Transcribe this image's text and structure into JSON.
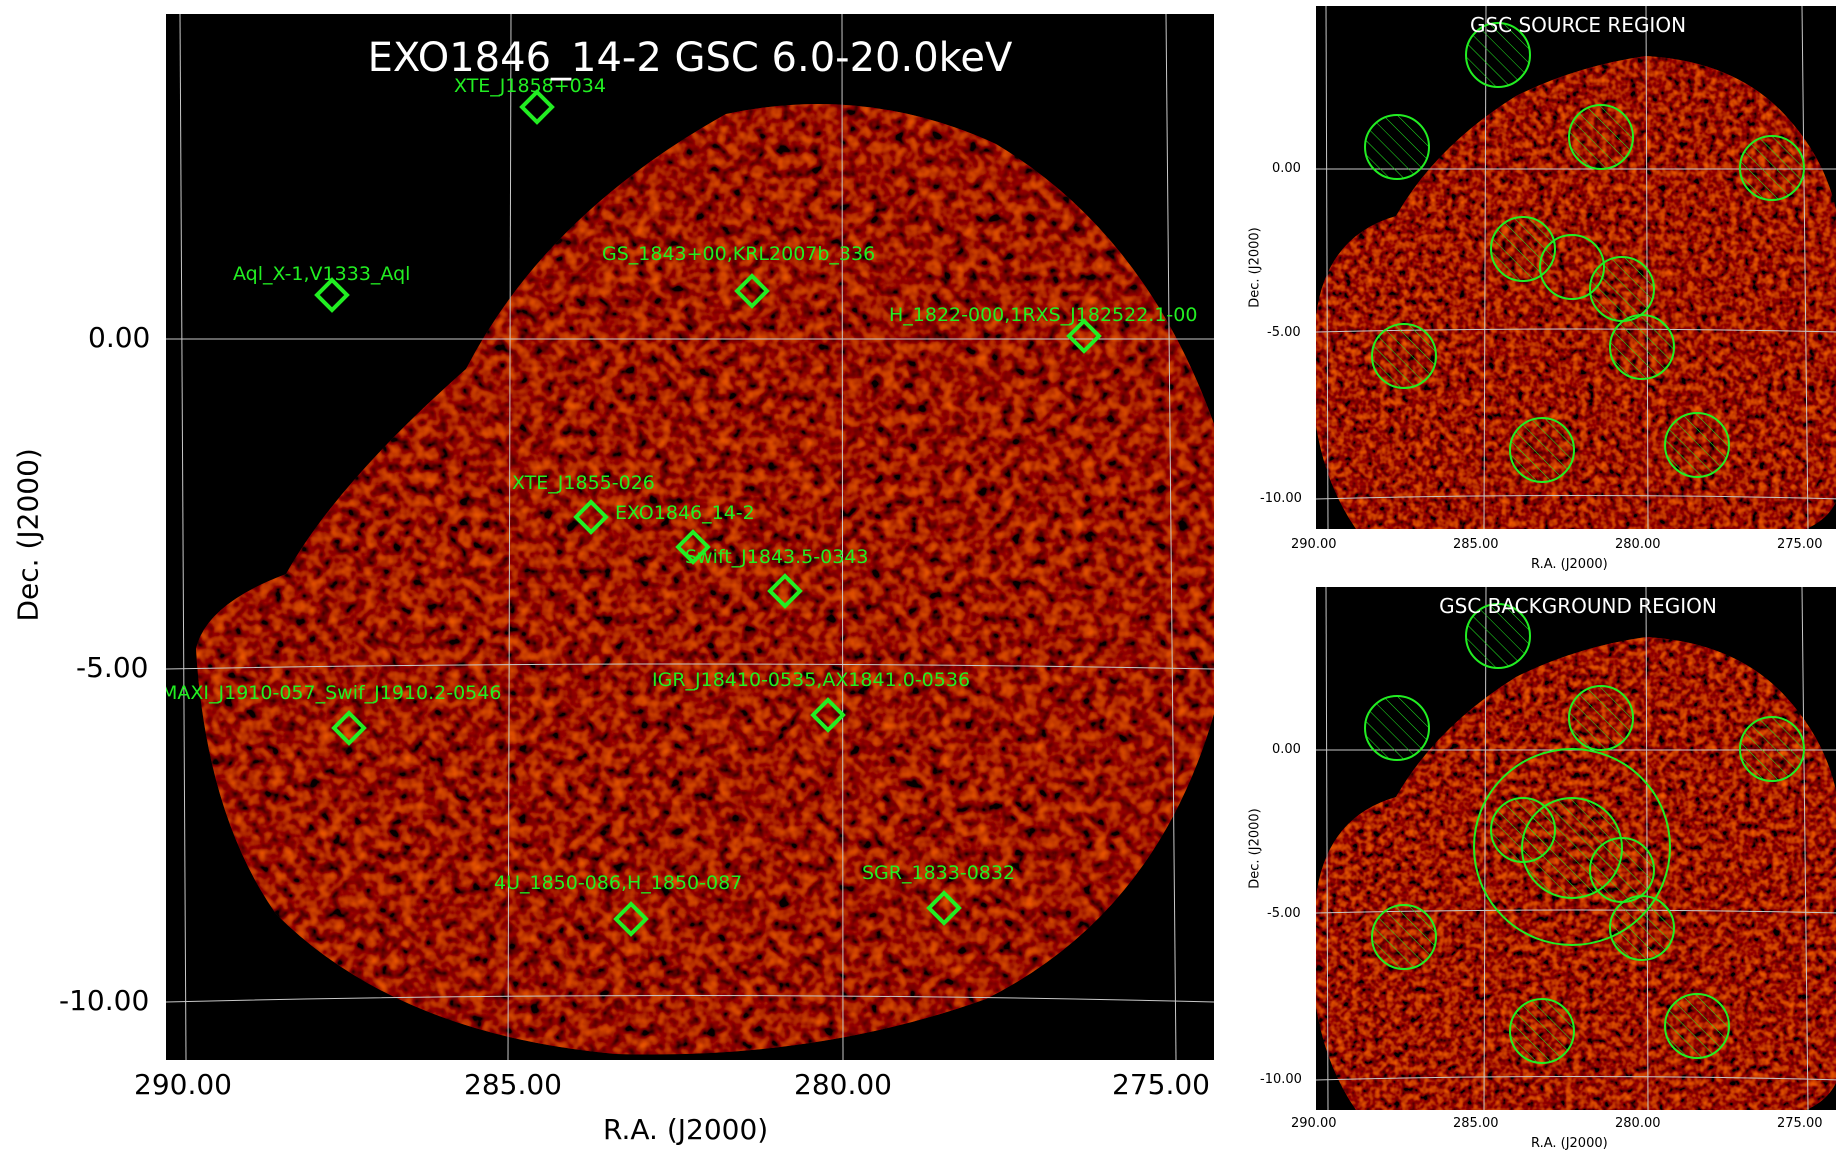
{
  "main": {
    "title": "EXO1846_14-2 GSC 6.0-20.0keV",
    "xlabel": "R.A. (J2000)",
    "ylabel": "Dec. (J2000)",
    "xticks": [
      "290.00",
      "285.00",
      "280.00",
      "275.00"
    ],
    "yticks": [
      "0.00",
      "-5.00",
      "-10.00"
    ],
    "sources": [
      {
        "name": "XTE_J1858+034"
      },
      {
        "name": "Aql_X-1,V1333_Aql"
      },
      {
        "name": "GS_1843+00,KRL2007b_336"
      },
      {
        "name": "H_1822-000,1RXS_J182522.1-00"
      },
      {
        "name": "XTE_J1855-026"
      },
      {
        "name": "EXO1846_14-2"
      },
      {
        "name": "Swift_J1843.5-0343"
      },
      {
        "name": "MAXI_J1910-057_Swif_J1910.2-0546"
      },
      {
        "name": "IGR_J18410-0535,AX1841.0-0536"
      },
      {
        "name": "4U_1850-086,H_1850-087"
      },
      {
        "name": "SGR_1833-0832"
      }
    ]
  },
  "source_panel": {
    "title": "GSC SOURCE REGION",
    "xlabel": "R.A. (J2000)",
    "ylabel": "Dec. (J2000)",
    "xticks": [
      "290.00",
      "285.00",
      "280.00",
      "275.00"
    ],
    "yticks": [
      "0.00",
      "-5.00",
      "-10.00"
    ]
  },
  "background_panel": {
    "title": "GSC BACKGROUND REGION",
    "xlabel": "R.A. (J2000)",
    "ylabel": "Dec. (J2000)",
    "xticks": [
      "290.00",
      "285.00",
      "280.00",
      "275.00"
    ],
    "yticks": [
      "0.00",
      "-5.00",
      "-10.00"
    ]
  },
  "colors": {
    "marker": "#22ee22",
    "grid": "#c8c8c8",
    "exposure": "#7a0c05"
  }
}
